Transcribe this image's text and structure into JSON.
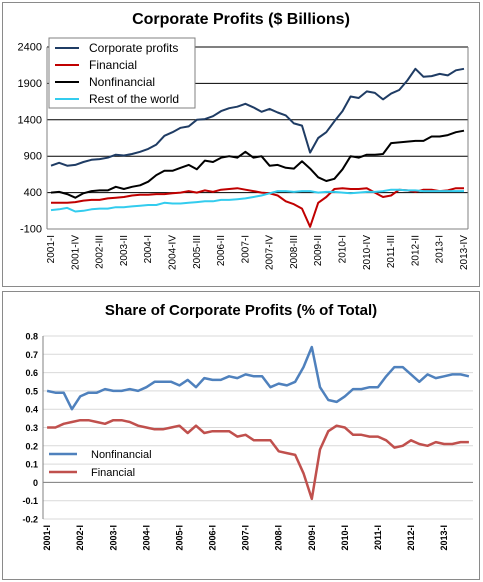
{
  "chart_data": [
    {
      "type": "line",
      "title": "Corporate Profits ($ Billions)",
      "xlabel": "",
      "ylabel": "",
      "ylim": [
        -100,
        2400
      ],
      "yticks": [
        -100,
        400,
        900,
        1400,
        1900,
        2400
      ],
      "grid": true,
      "legend_position": "top-left",
      "x_tick_labels": [
        "2001-I",
        "2001-IV",
        "2002-III",
        "2003-II",
        "2004-I",
        "2004-IV",
        "2005-III",
        "2006-II",
        "2007-I",
        "2007-IV",
        "2008-III",
        "2009-II",
        "2010-I",
        "2010-IV",
        "2011-III",
        "2012-II",
        "2013-I",
        "2013-IV"
      ],
      "x": [
        "2001-I",
        "2001-II",
        "2001-III",
        "2001-IV",
        "2002-I",
        "2002-II",
        "2002-III",
        "2002-IV",
        "2003-I",
        "2003-II",
        "2003-III",
        "2003-IV",
        "2004-I",
        "2004-II",
        "2004-III",
        "2004-IV",
        "2005-I",
        "2005-II",
        "2005-III",
        "2005-IV",
        "2006-I",
        "2006-II",
        "2006-III",
        "2006-IV",
        "2007-I",
        "2007-II",
        "2007-III",
        "2007-IV",
        "2008-I",
        "2008-II",
        "2008-III",
        "2008-IV",
        "2009-I",
        "2009-II",
        "2009-III",
        "2009-IV",
        "2010-I",
        "2010-II",
        "2010-III",
        "2010-IV",
        "2011-I",
        "2011-II",
        "2011-III",
        "2011-IV",
        "2012-I",
        "2012-II",
        "2012-III",
        "2012-IV",
        "2013-I",
        "2013-II",
        "2013-III",
        "2013-IV"
      ],
      "series": [
        {
          "name": "Corporate profits",
          "color": "#1f3c64",
          "values": [
            770,
            810,
            770,
            780,
            820,
            850,
            860,
            880,
            920,
            910,
            930,
            960,
            1000,
            1060,
            1180,
            1230,
            1290,
            1310,
            1400,
            1410,
            1450,
            1520,
            1560,
            1580,
            1620,
            1570,
            1510,
            1550,
            1500,
            1460,
            1350,
            1320,
            950,
            1150,
            1230,
            1380,
            1520,
            1720,
            1700,
            1790,
            1770,
            1680,
            1760,
            1810,
            1940,
            2100,
            1990,
            2000,
            2030,
            2010,
            2080,
            2100
          ]
        },
        {
          "name": "Financial",
          "color": "#c00000",
          "values": [
            260,
            260,
            260,
            270,
            290,
            300,
            300,
            320,
            330,
            340,
            360,
            370,
            370,
            380,
            380,
            390,
            400,
            420,
            400,
            430,
            410,
            440,
            450,
            460,
            440,
            420,
            400,
            390,
            360,
            280,
            240,
            180,
            -70,
            260,
            340,
            450,
            460,
            450,
            450,
            460,
            400,
            340,
            360,
            440,
            430,
            410,
            440,
            440,
            420,
            430,
            460,
            460
          ]
        },
        {
          "name": "Nonfinancial",
          "color": "#000000",
          "values": [
            400,
            410,
            380,
            330,
            390,
            420,
            430,
            430,
            480,
            450,
            480,
            500,
            550,
            640,
            700,
            700,
            740,
            780,
            720,
            840,
            820,
            880,
            900,
            880,
            960,
            880,
            900,
            770,
            780,
            740,
            730,
            830,
            730,
            610,
            560,
            590,
            720,
            900,
            880,
            920,
            920,
            930,
            1080,
            1090,
            1100,
            1110,
            1110,
            1170,
            1170,
            1190,
            1230,
            1250
          ]
        },
        {
          "name": "Rest of the world",
          "color": "#33ccee",
          "values": [
            160,
            170,
            190,
            140,
            150,
            170,
            180,
            180,
            200,
            200,
            210,
            220,
            230,
            230,
            260,
            250,
            250,
            260,
            270,
            280,
            280,
            300,
            300,
            310,
            320,
            340,
            360,
            390,
            420,
            420,
            410,
            420,
            420,
            400,
            410,
            410,
            400,
            390,
            400,
            410,
            410,
            420,
            440,
            440,
            430,
            430,
            420,
            420,
            420,
            420,
            420,
            420
          ]
        }
      ]
    },
    {
      "type": "line",
      "title": "Share of Corporate Profits (% of Total)",
      "xlabel": "",
      "ylabel": "",
      "ylim": [
        -0.2,
        0.8
      ],
      "yticks": [
        "-0.2",
        "-0.1",
        "0",
        "0.1",
        "0.2",
        "0.3",
        "0.4",
        "0.5",
        "0.6",
        "0.7",
        "0.8"
      ],
      "grid": true,
      "legend_position": "bottom-left",
      "x_tick_labels": [
        "2001-I",
        "2002-I",
        "2003-I",
        "2004-I",
        "2005-I",
        "2006-I",
        "2007-I",
        "2008-I",
        "2009-I",
        "2010-I",
        "2011-I",
        "2012-I",
        "2013-I"
      ],
      "x": [
        "2001-I",
        "2001-II",
        "2001-III",
        "2001-IV",
        "2002-I",
        "2002-II",
        "2002-III",
        "2002-IV",
        "2003-I",
        "2003-II",
        "2003-III",
        "2003-IV",
        "2004-I",
        "2004-II",
        "2004-III",
        "2004-IV",
        "2005-I",
        "2005-II",
        "2005-III",
        "2005-IV",
        "2006-I",
        "2006-II",
        "2006-III",
        "2006-IV",
        "2007-I",
        "2007-II",
        "2007-III",
        "2007-IV",
        "2008-I",
        "2008-II",
        "2008-III",
        "2008-IV",
        "2009-I",
        "2009-II",
        "2009-III",
        "2009-IV",
        "2010-I",
        "2010-II",
        "2010-III",
        "2010-IV",
        "2011-I",
        "2011-II",
        "2011-III",
        "2011-IV",
        "2012-I",
        "2012-II",
        "2012-III",
        "2012-IV",
        "2013-I",
        "2013-II",
        "2013-III",
        "2013-IV"
      ],
      "series": [
        {
          "name": "Nonfinancial",
          "color": "#4f81bd",
          "values": [
            0.5,
            0.49,
            0.49,
            0.4,
            0.47,
            0.49,
            0.49,
            0.51,
            0.5,
            0.5,
            0.51,
            0.5,
            0.52,
            0.55,
            0.55,
            0.55,
            0.53,
            0.56,
            0.52,
            0.57,
            0.56,
            0.56,
            0.58,
            0.57,
            0.59,
            0.58,
            0.58,
            0.52,
            0.54,
            0.53,
            0.55,
            0.63,
            0.74,
            0.52,
            0.45,
            0.44,
            0.47,
            0.51,
            0.51,
            0.52,
            0.52,
            0.58,
            0.63,
            0.63,
            0.59,
            0.55,
            0.59,
            0.57,
            0.58,
            0.59,
            0.59,
            0.58
          ]
        },
        {
          "name": "Financial",
          "color": "#c0504d",
          "values": [
            0.3,
            0.3,
            0.32,
            0.33,
            0.34,
            0.34,
            0.33,
            0.32,
            0.34,
            0.34,
            0.33,
            0.31,
            0.3,
            0.29,
            0.29,
            0.3,
            0.31,
            0.27,
            0.31,
            0.27,
            0.28,
            0.28,
            0.28,
            0.25,
            0.26,
            0.23,
            0.23,
            0.23,
            0.17,
            0.16,
            0.15,
            0.05,
            -0.09,
            0.18,
            0.28,
            0.31,
            0.3,
            0.26,
            0.26,
            0.25,
            0.25,
            0.23,
            0.19,
            0.2,
            0.23,
            0.21,
            0.2,
            0.22,
            0.21,
            0.21,
            0.22,
            0.22
          ]
        }
      ]
    }
  ]
}
